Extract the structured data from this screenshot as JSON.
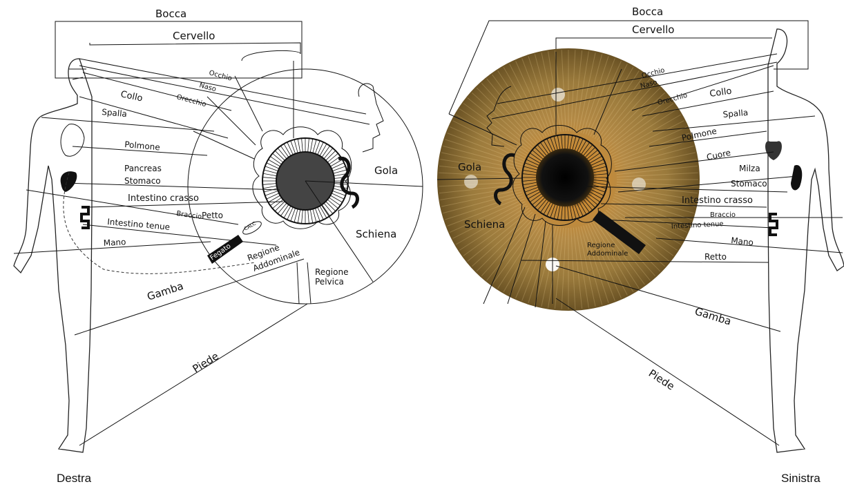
{
  "sides": {
    "right": "Destra",
    "left": "Sinistra"
  },
  "right_eye": {
    "labels": {
      "bocca": "Bocca",
      "cervello": "Cervello",
      "occhio": "Occhio",
      "naso": "Naso",
      "orecchio": "Orecchio",
      "collo": "Collo",
      "spalla": "Spalla",
      "polmone": "Polmone",
      "pancreas": "Pancreas",
      "stomaco": "Stomaco",
      "intestino_crasso": "Intestino crasso",
      "braccio": "Braccio",
      "petto": "Petto",
      "intestino_tenue": "Intestino tenue",
      "mano": "Mano",
      "fegato": "Fegato",
      "calc": "CALC",
      "regione_addominale_1": "Regione",
      "regione_addominale_2": "Addominale",
      "regione_pelvica_1": "Regione",
      "regione_pelvica_2": "Pelvica",
      "gola": "Gola",
      "schiena": "Schiena",
      "gamba": "Gamba",
      "piede": "Piede"
    }
  },
  "left_eye": {
    "labels": {
      "bocca": "Bocca",
      "cervello": "Cervello",
      "occhio": "Occhio",
      "naso": "Naso",
      "orecchio": "Orecchio",
      "collo": "Collo",
      "spalla": "Spalla",
      "polmone": "Polmone",
      "cuore": "Cuore",
      "milza": "Milza",
      "stomaco": "Stomaco",
      "intestino_crasso": "Intestino crasso",
      "braccio": "Braccio",
      "intestino_tenue": "Intestino tenue",
      "mano": "Mano",
      "regione_addominale_1": "Regione",
      "regione_addominale_2": "Addominale",
      "retto": "Retto",
      "gola": "Gola",
      "schiena": "Schiena",
      "gamba": "Gamba",
      "piede": "Piede"
    }
  },
  "colors": {
    "iris_outer": "#8a6a2c",
    "iris_inner": "#d9a44c",
    "pupil": "#111111",
    "ink": "#111111"
  }
}
